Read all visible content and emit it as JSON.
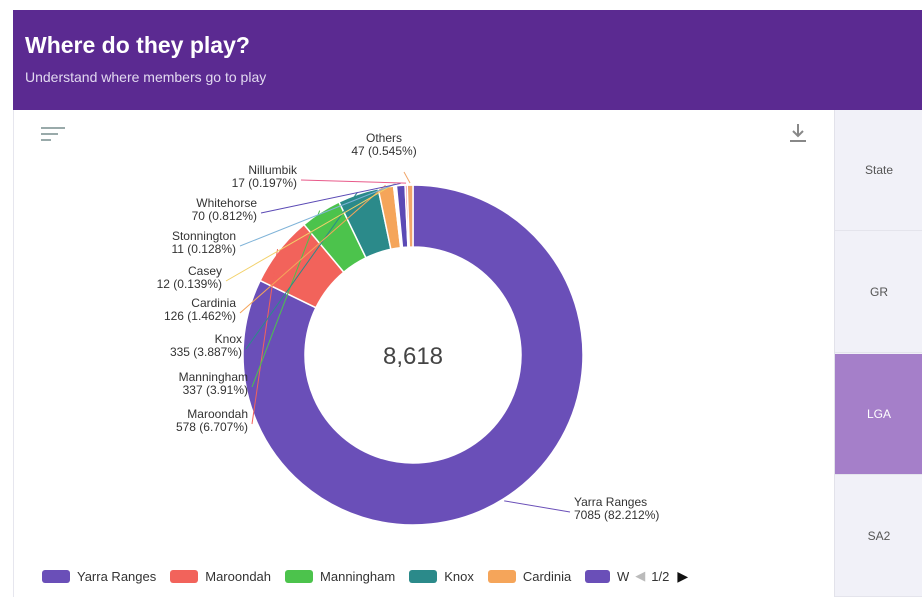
{
  "header": {
    "title": "Where do they play?",
    "subtitle": "Understand where members go to play",
    "color": "#5b2a91"
  },
  "tabs": [
    {
      "label": "State",
      "active": false
    },
    {
      "label": "GR",
      "active": false
    },
    {
      "label": "LGA",
      "active": true
    },
    {
      "label": "SA2",
      "active": false
    }
  ],
  "icons": {
    "menu": "hamburger-menu-icon",
    "download": "download-icon"
  },
  "chart_data": {
    "type": "pie",
    "variant": "donut",
    "center_label": "8,618",
    "total": 8618,
    "slices": [
      {
        "label": "Yarra Ranges",
        "value": 7085,
        "percent": "82.212%",
        "color": "#6a4fb8"
      },
      {
        "label": "Maroondah",
        "value": 578,
        "percent": "6.707%",
        "color": "#f2635b"
      },
      {
        "label": "Manningham",
        "value": 337,
        "percent": "3.91%",
        "color": "#4cc34c"
      },
      {
        "label": "Knox",
        "value": 335,
        "percent": "3.887%",
        "color": "#2b8a8a"
      },
      {
        "label": "Cardinia",
        "value": 126,
        "percent": "1.462%",
        "color": "#f5a55a"
      },
      {
        "label": "Casey",
        "value": 12,
        "percent": "0.139%",
        "color": "#f2d16a"
      },
      {
        "label": "Stonnington",
        "value": 11,
        "percent": "0.128%",
        "color": "#7fb3d8"
      },
      {
        "label": "Whitehorse",
        "value": 70,
        "percent": "0.812%",
        "color": "#5b4ab5"
      },
      {
        "label": "Nillumbik",
        "value": 17,
        "percent": "0.197%",
        "color": "#e85a8a"
      },
      {
        "label": "Others",
        "value": 47,
        "percent": "0.545%",
        "color": "#f0a56a"
      }
    ],
    "legend": {
      "items": [
        {
          "label": "Yarra Ranges",
          "color": "#6a4fb8"
        },
        {
          "label": "Maroondah",
          "color": "#f2635b"
        },
        {
          "label": "Manningham",
          "color": "#4cc34c"
        },
        {
          "label": "Knox",
          "color": "#2b8a8a"
        },
        {
          "label": "Cardinia",
          "color": "#f5a55a"
        },
        {
          "label": "W",
          "color": "#6a4fb8"
        }
      ],
      "page": "1/2",
      "placement": "bottom"
    }
  }
}
